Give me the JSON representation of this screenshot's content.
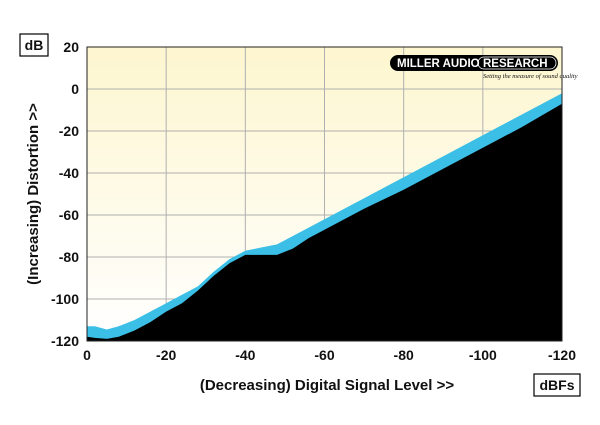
{
  "colors": {
    "band": "#3bbfe6",
    "floor": "#000000",
    "bg_top": "#fdf6cf",
    "bg_bottom": "#ffffff",
    "grid": "#b0b0b0"
  },
  "logo": {
    "left": "MILLER AUDIO",
    "right": "RESEARCH",
    "tagline": "Setting the measure of sound quality"
  },
  "chart_data": {
    "type": "area",
    "xlabel": "(Decreasing) Digital Signal Level >>",
    "ylabel": "(Increasing) Distortion >>",
    "y_unit": "dB",
    "x_unit": "dBFs",
    "xlim": [
      0,
      -120
    ],
    "ylim": [
      -120,
      20
    ],
    "x_ticks": [
      0,
      -20,
      -40,
      -60,
      -80,
      -100,
      -120
    ],
    "y_ticks": [
      20,
      0,
      -20,
      -40,
      -60,
      -80,
      -100,
      -120
    ],
    "grid": true,
    "series": [
      {
        "x": [
          0,
          -2,
          -5,
          -8,
          -12,
          -16,
          -20,
          -24,
          -28,
          -32,
          -36,
          -40,
          -44,
          -48,
          -52,
          -56,
          -60,
          -70,
          -80,
          -90,
          -100,
          -110,
          -120
        ],
        "upper": [
          -113,
          -113,
          -114.5,
          -113,
          -110,
          -106,
          -102,
          -98,
          -94,
          -87,
          -81,
          -77,
          -75.5,
          -74,
          -70,
          -66,
          -62,
          -52,
          -42,
          -32,
          -22,
          -12,
          -2
        ],
        "lower": [
          -118,
          -118.5,
          -119,
          -118,
          -115,
          -111,
          -106,
          -102,
          -96,
          -89,
          -83,
          -79,
          -79,
          -79,
          -76,
          -71,
          -67,
          -57,
          -48,
          -38,
          -28,
          -18,
          -7
        ]
      }
    ]
  }
}
